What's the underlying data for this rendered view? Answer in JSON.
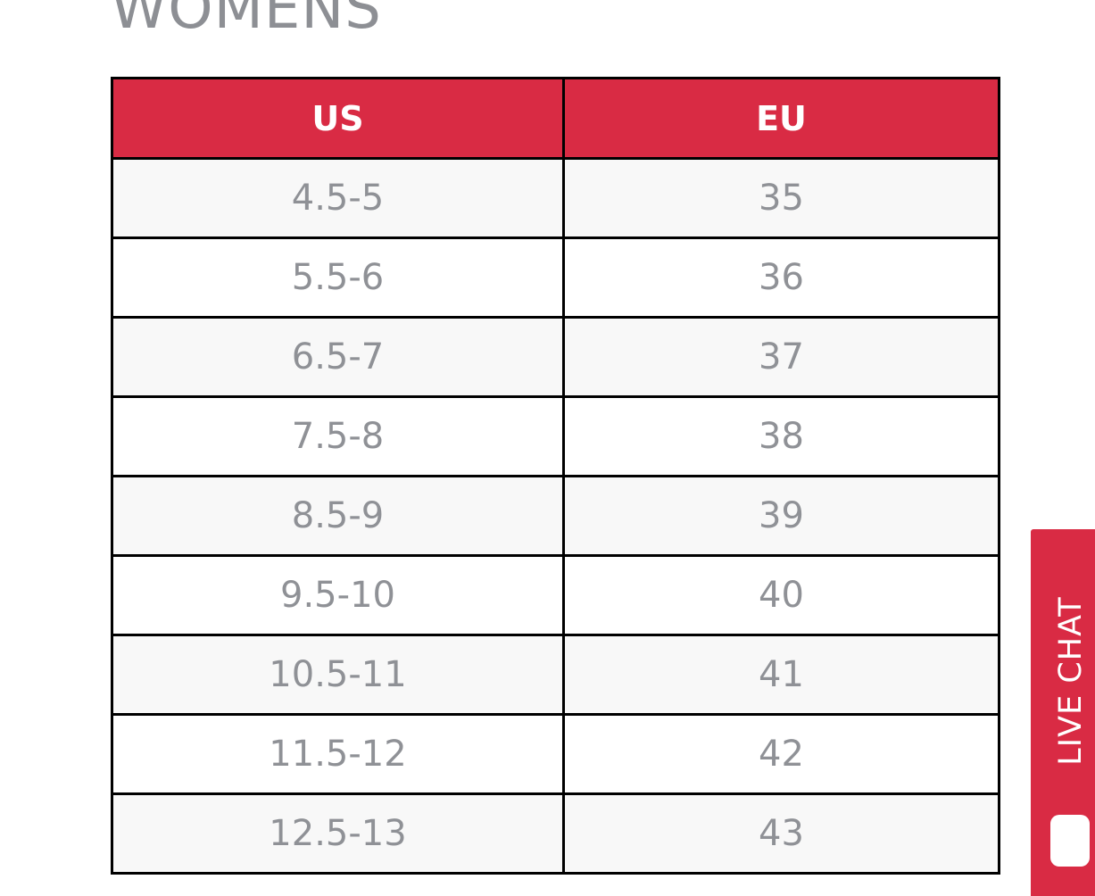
{
  "section": {
    "title": "WOMENS"
  },
  "table": {
    "headers": [
      "US",
      "EU"
    ],
    "rows": [
      {
        "us": "4.5-5",
        "eu": "35"
      },
      {
        "us": "5.5-6",
        "eu": "36"
      },
      {
        "us": "6.5-7",
        "eu": "37"
      },
      {
        "us": "7.5-8",
        "eu": "38"
      },
      {
        "us": "8.5-9",
        "eu": "39"
      },
      {
        "us": "9.5-10",
        "eu": "40"
      },
      {
        "us": "10.5-11",
        "eu": "41"
      },
      {
        "us": "11.5-12",
        "eu": "42"
      },
      {
        "us": "12.5-13",
        "eu": "43"
      }
    ]
  },
  "live_chat": {
    "label": "LIVE CHAT",
    "icon": "chat-bubble-icon"
  },
  "colors": {
    "accent": "#d92b44",
    "text_muted": "#8f9196",
    "row_alt": "#f8f8f8",
    "border": "#000000"
  }
}
